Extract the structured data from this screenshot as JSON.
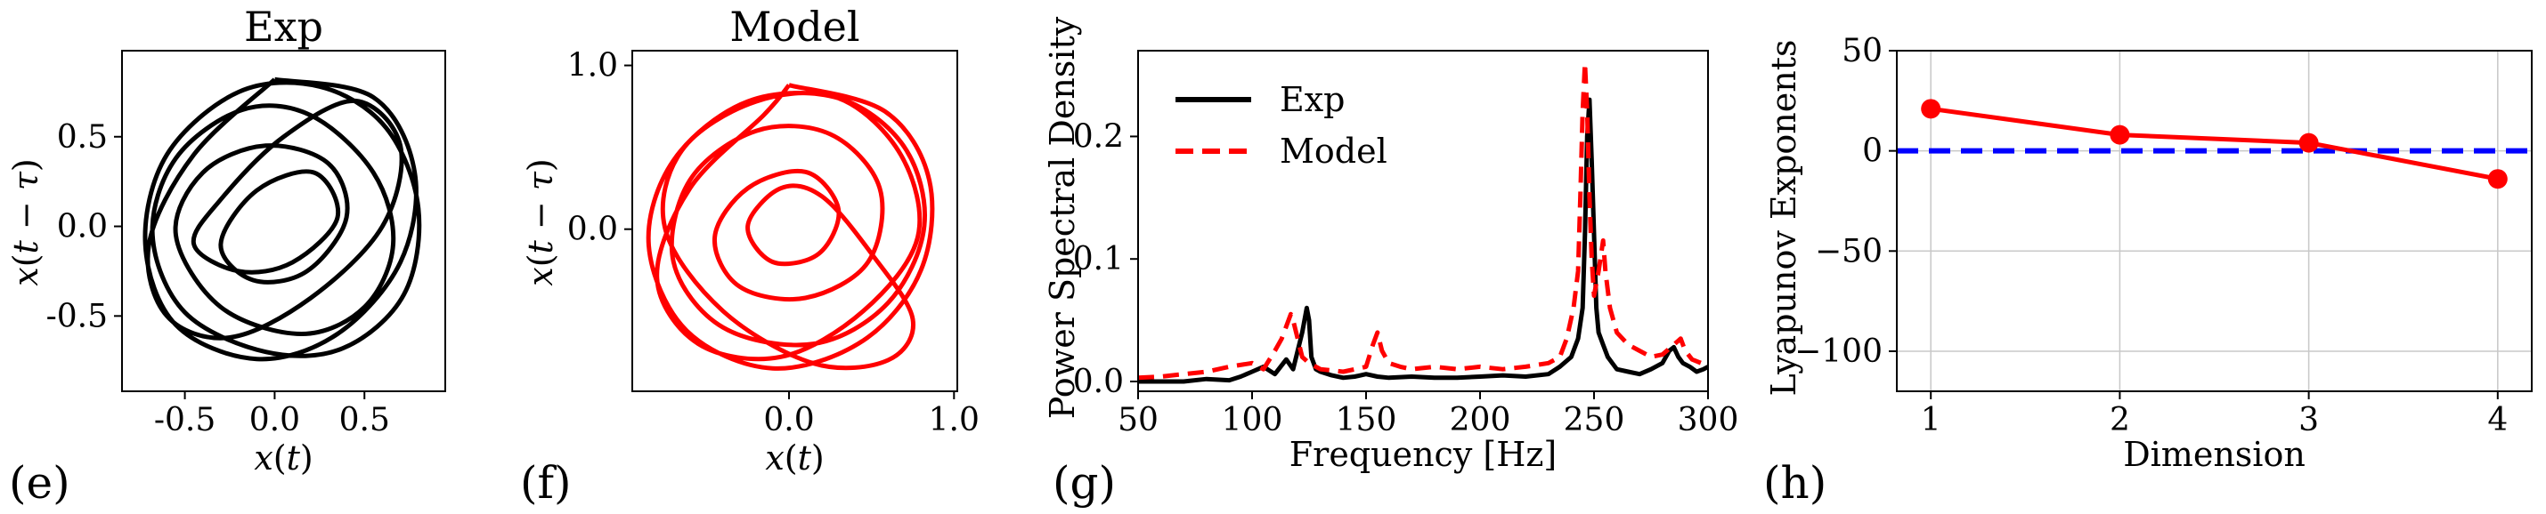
{
  "chart_data": [
    {
      "panel": "(e)",
      "type": "line",
      "title": "Exp",
      "xlabel": "x(t)",
      "ylabel": "x(t − τ)",
      "xlim": [
        -0.85,
        0.95
      ],
      "ylim": [
        -0.92,
        0.98
      ],
      "xticks": [
        -0.5,
        0.0,
        0.5
      ],
      "xtick_labels": [
        "-0.5",
        "0.0",
        "0.5"
      ],
      "yticks": [
        -0.5,
        0.0,
        0.5
      ],
      "ytick_labels": [
        "-0.5",
        "0.0",
        "0.5"
      ],
      "grid": false,
      "color": "#000000",
      "series": [
        {
          "values_desc": "delay-embedded attractor trajectory (closed loops)",
          "x": [
            0.0,
            0.55,
            0.78,
            0.7,
            0.35,
            -0.1,
            -0.55,
            -0.72,
            -0.6,
            -0.2,
            0.25,
            0.62,
            0.8,
            0.72,
            0.38,
            -0.05,
            -0.5,
            -0.68,
            -0.55,
            -0.18,
            0.2,
            0.55,
            0.66,
            0.5,
            0.15,
            -0.3,
            -0.55,
            -0.4,
            -0.05,
            0.3,
            0.4,
            0.18,
            -0.12,
            -0.3,
            -0.1,
            0.22,
            0.35,
            0.1,
            -0.2,
            -0.45,
            -0.3,
            0.05,
            0.45,
            0.7,
            0.6,
            0.2,
            -0.25,
            -0.6,
            -0.7,
            -0.45,
            0.0
          ],
          "y": [
            0.82,
            0.72,
            0.3,
            -0.2,
            -0.6,
            -0.74,
            -0.55,
            -0.1,
            0.4,
            0.75,
            0.78,
            0.55,
            0.1,
            -0.38,
            -0.68,
            -0.7,
            -0.48,
            -0.05,
            0.38,
            0.65,
            0.62,
            0.3,
            -0.1,
            -0.45,
            -0.6,
            -0.45,
            -0.05,
            0.3,
            0.45,
            0.35,
            0.05,
            -0.25,
            -0.3,
            -0.1,
            0.2,
            0.3,
            0.05,
            -0.2,
            -0.25,
            -0.1,
            0.15,
            0.5,
            0.7,
            0.45,
            0.0,
            -0.4,
            -0.62,
            -0.5,
            -0.1,
            0.4,
            0.82
          ]
        }
      ]
    },
    {
      "panel": "(f)",
      "type": "line",
      "title": "Model",
      "xlabel": "x(t)",
      "ylabel": "x(t − τ)",
      "xlim": [
        -0.95,
        1.02
      ],
      "ylim": [
        -0.99,
        1.09
      ],
      "xticks": [
        0.0,
        1.0
      ],
      "xtick_labels": [
        "0.0",
        "1.0"
      ],
      "yticks": [
        0.0,
        1.0
      ],
      "ytick_labels": [
        "0.0",
        "1.0"
      ],
      "grid": false,
      "color": "#ff0000",
      "series": [
        {
          "values_desc": "model attractor trajectory (closed loops)",
          "x": [
            0.0,
            0.58,
            0.85,
            0.8,
            0.45,
            -0.1,
            -0.62,
            -0.85,
            -0.7,
            -0.25,
            0.3,
            0.7,
            0.82,
            0.6,
            0.15,
            -0.4,
            -0.7,
            -0.6,
            -0.2,
            0.25,
            0.55,
            0.48,
            0.1,
            -0.3,
            -0.45,
            -0.25,
            0.1,
            0.3,
            0.18,
            -0.1,
            -0.25,
            -0.05,
            0.2,
            0.5,
            0.75,
            0.6,
            0.15,
            -0.4,
            -0.75,
            -0.65,
            -0.2,
            0.3,
            0.68,
            0.78,
            0.45,
            -0.05,
            -0.55,
            -0.8,
            -0.6,
            -0.15,
            0.0
          ],
          "y": [
            0.88,
            0.72,
            0.3,
            -0.25,
            -0.68,
            -0.85,
            -0.62,
            -0.1,
            0.42,
            0.78,
            0.8,
            0.5,
            0.02,
            -0.45,
            -0.7,
            -0.6,
            -0.2,
            0.3,
            0.6,
            0.58,
            0.25,
            -0.2,
            -0.42,
            -0.35,
            -0.05,
            0.25,
            0.35,
            0.12,
            -0.15,
            -0.2,
            0.02,
            0.25,
            0.2,
            -0.15,
            -0.55,
            -0.8,
            -0.82,
            -0.5,
            0.0,
            0.48,
            0.78,
            0.8,
            0.45,
            -0.05,
            -0.5,
            -0.78,
            -0.7,
            -0.3,
            0.25,
            0.7,
            0.88
          ]
        }
      ]
    },
    {
      "panel": "(g)",
      "type": "line",
      "title": "",
      "xlabel": "Frequency [Hz]",
      "ylabel": "Power Spectral Density",
      "xlim": [
        50,
        300
      ],
      "ylim": [
        -0.008,
        0.27
      ],
      "xticks": [
        50,
        100,
        150,
        200,
        250,
        300
      ],
      "xtick_labels": [
        "50",
        "100",
        "150",
        "200",
        "250",
        "300"
      ],
      "yticks": [
        0.0,
        0.1,
        0.2
      ],
      "ytick_labels": [
        "0.0",
        "0.1",
        "0.2"
      ],
      "grid": false,
      "legend": {
        "position": "top-left",
        "entries": [
          "Exp",
          "Model"
        ]
      },
      "series": [
        {
          "name": "Exp",
          "color": "#000000",
          "style": "solid",
          "x": [
            50,
            60,
            70,
            80,
            90,
            95,
            100,
            105,
            110,
            115,
            118,
            120,
            122,
            124,
            125,
            126,
            128,
            130,
            135,
            140,
            145,
            150,
            155,
            160,
            170,
            180,
            190,
            200,
            210,
            220,
            230,
            235,
            240,
            243,
            245,
            246,
            247,
            248,
            249,
            250,
            251,
            252,
            254,
            256,
            258,
            260,
            265,
            270,
            275,
            280,
            283,
            285,
            287,
            289,
            292,
            295,
            298,
            300
          ],
          "y": [
            0.0,
            0.0,
            0.0,
            0.002,
            0.001,
            0.004,
            0.008,
            0.012,
            0.006,
            0.018,
            0.01,
            0.025,
            0.04,
            0.06,
            0.05,
            0.02,
            0.01,
            0.008,
            0.005,
            0.003,
            0.004,
            0.006,
            0.004,
            0.003,
            0.004,
            0.003,
            0.003,
            0.004,
            0.005,
            0.004,
            0.006,
            0.012,
            0.02,
            0.035,
            0.06,
            0.12,
            0.2,
            0.23,
            0.18,
            0.12,
            0.06,
            0.04,
            0.03,
            0.02,
            0.015,
            0.01,
            0.008,
            0.006,
            0.01,
            0.015,
            0.025,
            0.028,
            0.02,
            0.015,
            0.012,
            0.008,
            0.01,
            0.012
          ]
        },
        {
          "name": "Model",
          "color": "#ff0000",
          "style": "dashed",
          "x": [
            50,
            60,
            70,
            80,
            90,
            100,
            105,
            110,
            113,
            115,
            117,
            118,
            120,
            122,
            125,
            130,
            140,
            150,
            153,
            155,
            157,
            160,
            165,
            170,
            180,
            190,
            200,
            210,
            220,
            230,
            235,
            238,
            241,
            243,
            244,
            245,
            246,
            247,
            248,
            249,
            250,
            252,
            254,
            255,
            257,
            260,
            265,
            270,
            275,
            280,
            285,
            288,
            290,
            293,
            297,
            300
          ],
          "y": [
            0.003,
            0.004,
            0.006,
            0.008,
            0.012,
            0.015,
            0.01,
            0.025,
            0.035,
            0.045,
            0.055,
            0.05,
            0.035,
            0.02,
            0.015,
            0.01,
            0.008,
            0.012,
            0.03,
            0.04,
            0.025,
            0.015,
            0.012,
            0.01,
            0.012,
            0.01,
            0.012,
            0.01,
            0.012,
            0.015,
            0.02,
            0.035,
            0.06,
            0.09,
            0.15,
            0.22,
            0.26,
            0.22,
            0.15,
            0.1,
            0.07,
            0.09,
            0.115,
            0.09,
            0.06,
            0.04,
            0.03,
            0.025,
            0.02,
            0.022,
            0.03,
            0.035,
            0.025,
            0.018,
            0.015,
            0.012
          ]
        }
      ]
    },
    {
      "panel": "(h)",
      "type": "line",
      "title": "",
      "xlabel": "Dimension",
      "ylabel": "Lyapunov Exponents",
      "xlim": [
        0.82,
        4.18
      ],
      "ylim": [
        -120,
        50
      ],
      "xticks": [
        1,
        2,
        3,
        4
      ],
      "xtick_labels": [
        "1",
        "2",
        "3",
        "4"
      ],
      "yticks": [
        -100,
        -50,
        0,
        50
      ],
      "ytick_labels": [
        "−100",
        "−50",
        "0",
        "50"
      ],
      "grid": true,
      "reference_line": {
        "y": 0,
        "color": "#0000ff",
        "style": "dashed"
      },
      "series": [
        {
          "color": "#ff0000",
          "marker": "circle",
          "x": [
            1,
            2,
            3,
            4
          ],
          "y": [
            21,
            8,
            4,
            -14
          ]
        }
      ]
    }
  ]
}
